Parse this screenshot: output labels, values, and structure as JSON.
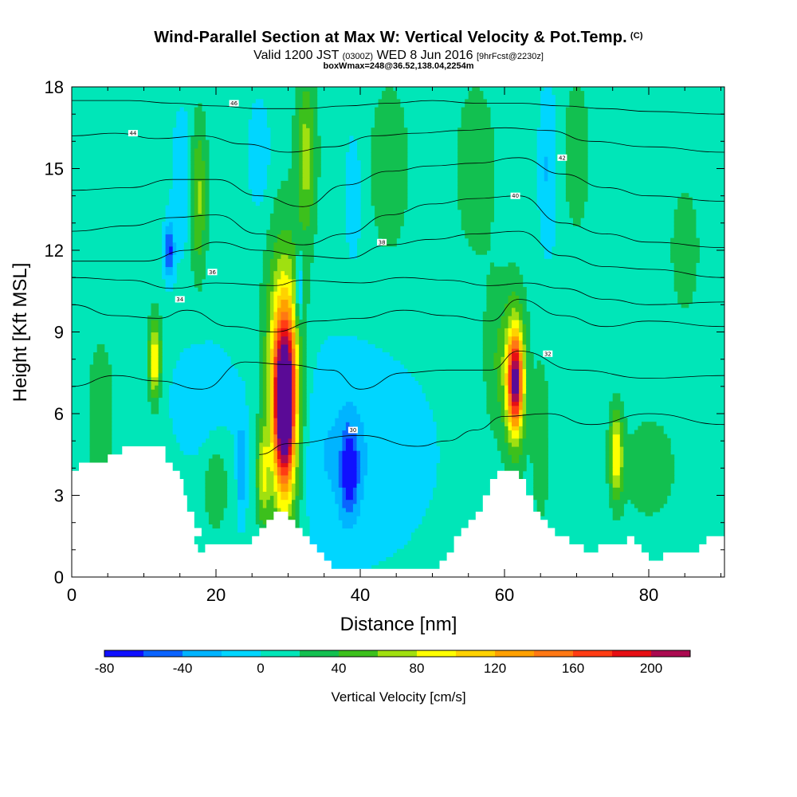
{
  "header": {
    "title": "Wind-Parallel Section at Max W: Vertical Velocity & Pot.Temp.",
    "copyright": "(C)",
    "valid_prefix": "Valid 1200 JST",
    "valid_utc": "(0300Z)",
    "valid_date": "WED 8 Jun 2016",
    "forecast": "[9hrFcst@2230z]",
    "box_info": "boxWmax=248@36.52,138.04,2254m"
  },
  "chart_data": {
    "type": "heatmap",
    "xlabel": "Distance [nm]",
    "ylabel": "Height [Kft MSL]",
    "xlim": [
      0,
      90.5
    ],
    "ylim": [
      0,
      18
    ],
    "x_ticks": [
      "0",
      "20",
      "40",
      "60",
      "80"
    ],
    "y_ticks": [
      "0",
      "3",
      "6",
      "9",
      "12",
      "15",
      "18"
    ],
    "colorbar": {
      "title": "Vertical Velocity [cm/s]",
      "tick_labels": [
        "-80",
        "-40",
        "0",
        "40",
        "80",
        "120",
        "160",
        "200"
      ],
      "levels": [
        -80,
        -60,
        -40,
        -20,
        0,
        20,
        40,
        60,
        80,
        100,
        120,
        140,
        160,
        180,
        200,
        220
      ],
      "colors": [
        "#1010ff",
        "#0a64ff",
        "#00b4ff",
        "#00d6ff",
        "#00e6b8",
        "#12c050",
        "#3cc01c",
        "#a0e010",
        "#ffff00",
        "#ffd200",
        "#ffa000",
        "#ff7814",
        "#ff3c14",
        "#e60f14",
        "#aa0a50",
        "#5a0a96"
      ],
      "background_color": "#00e6b8"
    },
    "terrain": [
      [
        0,
        3.9
      ],
      [
        1,
        3.9
      ],
      [
        1,
        4.2
      ],
      [
        3,
        4.2
      ],
      [
        3,
        4.2
      ],
      [
        5,
        4.2
      ],
      [
        5,
        4.5
      ],
      [
        7,
        4.5
      ],
      [
        7,
        4.8
      ],
      [
        13,
        4.8
      ],
      [
        13,
        4.2
      ],
      [
        14,
        4.2
      ],
      [
        14,
        3.9
      ],
      [
        15,
        3.9
      ],
      [
        15,
        3.6
      ],
      [
        15.5,
        3.6
      ],
      [
        15.5,
        3.0
      ],
      [
        16,
        3.0
      ],
      [
        16,
        2.4
      ],
      [
        17,
        2.4
      ],
      [
        17,
        1.8
      ],
      [
        18,
        1.8
      ],
      [
        18,
        1.5
      ],
      [
        17,
        1.5
      ],
      [
        17,
        1.2
      ],
      [
        17.5,
        1.2
      ],
      [
        17.5,
        0.9
      ],
      [
        18.5,
        0.9
      ],
      [
        18.5,
        1.2
      ],
      [
        25,
        1.2
      ],
      [
        25,
        1.5
      ],
      [
        26,
        1.5
      ],
      [
        26,
        1.8
      ],
      [
        27,
        1.8
      ],
      [
        27,
        2.1
      ],
      [
        28,
        2.1
      ],
      [
        28,
        2.4
      ],
      [
        30,
        2.4
      ],
      [
        30,
        2.1
      ],
      [
        31,
        2.1
      ],
      [
        31,
        1.8
      ],
      [
        32,
        1.8
      ],
      [
        32,
        1.5
      ],
      [
        33,
        1.5
      ],
      [
        33,
        1.2
      ],
      [
        34,
        1.2
      ],
      [
        34,
        0.9
      ],
      [
        35,
        0.9
      ],
      [
        35,
        0.6
      ],
      [
        36,
        0.6
      ],
      [
        36,
        0.3
      ],
      [
        51,
        0.3
      ],
      [
        51,
        0.6
      ],
      [
        52,
        0.6
      ],
      [
        52,
        0.9
      ],
      [
        53,
        0.9
      ],
      [
        53,
        1.5
      ],
      [
        54,
        1.5
      ],
      [
        54,
        1.8
      ],
      [
        55,
        1.8
      ],
      [
        55,
        2.1
      ],
      [
        56,
        2.1
      ],
      [
        56,
        2.4
      ],
      [
        57,
        2.4
      ],
      [
        57,
        3.0
      ],
      [
        58,
        3.0
      ],
      [
        58,
        3.6
      ],
      [
        59,
        3.6
      ],
      [
        59,
        3.9
      ],
      [
        62,
        3.9
      ],
      [
        62,
        3.6
      ],
      [
        63,
        3.6
      ],
      [
        63,
        3.0
      ],
      [
        64,
        3.0
      ],
      [
        64,
        2.4
      ],
      [
        65,
        2.4
      ],
      [
        65,
        2.1
      ],
      [
        66,
        2.1
      ],
      [
        66,
        1.8
      ],
      [
        67,
        1.8
      ],
      [
        67,
        1.5
      ],
      [
        69,
        1.5
      ],
      [
        69,
        1.2
      ],
      [
        71,
        1.2
      ],
      [
        71,
        0.9
      ],
      [
        73,
        0.9
      ],
      [
        73,
        1.2
      ],
      [
        77,
        1.2
      ],
      [
        77,
        1.5
      ],
      [
        78,
        1.5
      ],
      [
        78,
        1.2
      ],
      [
        79,
        1.2
      ],
      [
        79,
        0.9
      ],
      [
        80,
        0.9
      ],
      [
        80,
        0.6
      ],
      [
        82,
        0.6
      ],
      [
        82,
        0.9
      ],
      [
        87,
        0.9
      ],
      [
        87,
        1.2
      ],
      [
        88,
        1.2
      ],
      [
        88,
        1.5
      ],
      [
        90.5,
        1.5
      ]
    ],
    "w_features": [
      {
        "x": 29.5,
        "y": 6.2,
        "wx": 1.3,
        "wy": 2.6,
        "w": 175
      },
      {
        "x": 29.5,
        "y": 7.2,
        "wx": 2.0,
        "wy": 4.0,
        "w": 110
      },
      {
        "x": 29.3,
        "y": 6.0,
        "wx": 2.8,
        "wy": 6.0,
        "w": 60
      },
      {
        "x": 61.5,
        "y": 7.2,
        "wx": 1.0,
        "wy": 1.6,
        "w": 140
      },
      {
        "x": 61.5,
        "y": 7.3,
        "wx": 1.5,
        "wy": 2.8,
        "w": 90
      },
      {
        "x": 75.5,
        "y": 4.5,
        "wx": 0.9,
        "wy": 1.6,
        "w": 90
      },
      {
        "x": 11.5,
        "y": 8.0,
        "wx": 0.8,
        "wy": 1.5,
        "w": 95
      },
      {
        "x": 26.5,
        "y": 3.8,
        "wx": 0.9,
        "wy": 1.8,
        "w": 70
      },
      {
        "x": 17.5,
        "y": 14.0,
        "wx": 1.2,
        "wy": 2.8,
        "w": 60
      },
      {
        "x": 32.5,
        "y": 15.5,
        "wx": 1.4,
        "wy": 3.0,
        "w": 60
      },
      {
        "x": 38.5,
        "y": 3.9,
        "wx": 1.2,
        "wy": 1.6,
        "w": -70
      },
      {
        "x": 37.0,
        "y": 4.5,
        "wx": 12.0,
        "wy": 3.8,
        "w": -30
      },
      {
        "x": 18.0,
        "y": 6.5,
        "wx": 4.0,
        "wy": 2.0,
        "w": -25
      },
      {
        "x": 13.5,
        "y": 12.0,
        "wx": 0.7,
        "wy": 1.0,
        "w": -75
      },
      {
        "x": 31.5,
        "y": 10.5,
        "wx": 0.5,
        "wy": 1.5,
        "w": -60
      },
      {
        "x": 23.5,
        "y": 4.0,
        "wx": 0.5,
        "wy": 1.6,
        "w": -50
      },
      {
        "x": 15.5,
        "y": 14.5,
        "wx": 1.5,
        "wy": 2.5,
        "w": -30
      },
      {
        "x": 66.0,
        "y": 15.0,
        "wx": 1.2,
        "wy": 3.0,
        "w": -30
      },
      {
        "x": 26.0,
        "y": 15.5,
        "wx": 1.5,
        "wy": 2.0,
        "w": -25
      },
      {
        "x": 39.0,
        "y": 14.0,
        "wx": 1.0,
        "wy": 2.0,
        "w": -30
      },
      {
        "x": 65.0,
        "y": 5.0,
        "wx": 1.2,
        "wy": 3.0,
        "w": 30
      },
      {
        "x": 59.0,
        "y": 8.0,
        "wx": 2.0,
        "wy": 3.0,
        "w": 30
      },
      {
        "x": 80.0,
        "y": 4.0,
        "wx": 4.0,
        "wy": 2.0,
        "w": 25
      },
      {
        "x": 4.0,
        "y": 6.0,
        "wx": 2.0,
        "wy": 3.0,
        "w": 25
      },
      {
        "x": 20.0,
        "y": 3.5,
        "wx": 2.0,
        "wy": 2.0,
        "w": 30
      },
      {
        "x": 44.0,
        "y": 15.0,
        "wx": 3.0,
        "wy": 3.5,
        "w": 25
      },
      {
        "x": 56.0,
        "y": 15.0,
        "wx": 3.0,
        "wy": 3.5,
        "w": 25
      },
      {
        "x": 70.0,
        "y": 15.5,
        "wx": 2.0,
        "wy": 3.0,
        "w": 25
      },
      {
        "x": 85.0,
        "y": 12.0,
        "wx": 2.5,
        "wy": 3.0,
        "w": 20
      }
    ],
    "theta_contours": [
      {
        "label": "30",
        "points": [
          [
            26,
            4.5
          ],
          [
            30,
            4.9
          ],
          [
            40,
            5.2
          ],
          [
            48,
            4.8
          ],
          [
            52,
            5.0
          ],
          [
            56,
            5.4
          ],
          [
            60,
            5.9
          ],
          [
            66,
            6.0
          ],
          [
            72,
            5.6
          ],
          [
            80,
            6.0
          ],
          [
            90.5,
            5.6
          ]
        ],
        "label_at": [
          39,
          5.4
        ]
      },
      {
        "label": "32",
        "points": [
          [
            0,
            7.0
          ],
          [
            6,
            7.4
          ],
          [
            12,
            7.2
          ],
          [
            18,
            6.9
          ],
          [
            24,
            7.9
          ],
          [
            30,
            7.8
          ],
          [
            36,
            7.6
          ],
          [
            40,
            6.9
          ],
          [
            46,
            7.5
          ],
          [
            52,
            7.6
          ],
          [
            58,
            7.6
          ],
          [
            62,
            8.3
          ],
          [
            70,
            7.6
          ],
          [
            80,
            7.3
          ],
          [
            90.5,
            7.4
          ]
        ],
        "label_at": [
          66,
          8.2
        ]
      },
      {
        "label": "34",
        "points": [
          [
            0,
            10.0
          ],
          [
            6,
            9.6
          ],
          [
            12,
            9.5
          ],
          [
            16,
            9.8
          ],
          [
            22,
            9.2
          ],
          [
            28,
            9.0
          ],
          [
            34,
            9.4
          ],
          [
            40,
            9.5
          ],
          [
            46,
            9.8
          ],
          [
            52,
            9.6
          ],
          [
            58,
            9.4
          ],
          [
            62,
            10.2
          ],
          [
            68,
            9.6
          ],
          [
            74,
            9.2
          ],
          [
            80,
            9.4
          ],
          [
            90.5,
            9.2
          ]
        ],
        "label_at": [
          15,
          10.2
        ]
      },
      {
        "label": "36",
        "points": [
          [
            0,
            11.0
          ],
          [
            8,
            10.9
          ],
          [
            14,
            10.6
          ],
          [
            20,
            10.8
          ],
          [
            28,
            10.7
          ],
          [
            32,
            10.9
          ],
          [
            40,
            10.8
          ],
          [
            46,
            11.0
          ],
          [
            52,
            10.9
          ],
          [
            58,
            10.7
          ],
          [
            63,
            10.8
          ],
          [
            68,
            10.6
          ],
          [
            74,
            10.2
          ],
          [
            80,
            10.0
          ],
          [
            90.5,
            10.1
          ]
        ],
        "label_at": [
          19.5,
          11.2
        ]
      },
      {
        "label": "38",
        "points": [
          [
            0,
            11.6
          ],
          [
            10,
            11.6
          ],
          [
            16,
            12.0
          ],
          [
            20,
            12.3
          ],
          [
            26,
            12.0
          ],
          [
            32,
            11.8
          ],
          [
            38,
            11.7
          ],
          [
            44,
            12.2
          ],
          [
            50,
            12.4
          ],
          [
            56,
            12.6
          ],
          [
            62,
            12.7
          ],
          [
            68,
            11.8
          ],
          [
            74,
            11.4
          ],
          [
            80,
            11.3
          ],
          [
            90.5,
            11.0
          ]
        ],
        "label_at": [
          43,
          12.3
        ]
      },
      {
        "label": "40",
        "points": [
          [
            0,
            12.7
          ],
          [
            8,
            12.9
          ],
          [
            14,
            13.2
          ],
          [
            20,
            13.3
          ],
          [
            26,
            12.6
          ],
          [
            32,
            12.2
          ],
          [
            38,
            12.6
          ],
          [
            44,
            13.3
          ],
          [
            50,
            13.7
          ],
          [
            56,
            13.9
          ],
          [
            62,
            14.0
          ],
          [
            68,
            13.0
          ],
          [
            74,
            12.6
          ],
          [
            80,
            12.3
          ],
          [
            90.5,
            12.1
          ]
        ],
        "label_at": [
          61.5,
          14.0
        ]
      },
      {
        "label": "42",
        "points": [
          [
            0,
            14.2
          ],
          [
            8,
            14.3
          ],
          [
            14,
            14.6
          ],
          [
            20,
            14.6
          ],
          [
            26,
            14.0
          ],
          [
            32,
            13.6
          ],
          [
            38,
            14.4
          ],
          [
            44,
            14.9
          ],
          [
            50,
            15.1
          ],
          [
            56,
            15.2
          ],
          [
            62,
            15.4
          ],
          [
            68,
            14.8
          ],
          [
            74,
            14.3
          ],
          [
            80,
            14.0
          ],
          [
            90.5,
            13.8
          ]
        ],
        "label_at": [
          68,
          15.4
        ]
      },
      {
        "label": "44",
        "points": [
          [
            0,
            16.2
          ],
          [
            6,
            16.3
          ],
          [
            12,
            16.1
          ],
          [
            18,
            16.2
          ],
          [
            24,
            15.9
          ],
          [
            30,
            15.6
          ],
          [
            36,
            15.8
          ],
          [
            42,
            16.2
          ],
          [
            48,
            16.3
          ],
          [
            54,
            16.4
          ],
          [
            60,
            16.5
          ],
          [
            66,
            16.4
          ],
          [
            72,
            16.0
          ],
          [
            80,
            15.8
          ],
          [
            90.5,
            15.6
          ]
        ],
        "label_at": [
          8.5,
          16.3
        ]
      },
      {
        "label": "46",
        "points": [
          [
            0,
            17.5
          ],
          [
            8,
            17.5
          ],
          [
            14,
            17.4
          ],
          [
            20,
            17.3
          ],
          [
            26,
            17.2
          ],
          [
            32,
            17.2
          ],
          [
            38,
            17.3
          ],
          [
            44,
            17.4
          ],
          [
            50,
            17.5
          ],
          [
            56,
            17.4
          ],
          [
            62,
            17.4
          ],
          [
            68,
            17.3
          ],
          [
            74,
            17.2
          ],
          [
            80,
            17.1
          ],
          [
            90.5,
            17.0
          ]
        ],
        "label_at": [
          22.5,
          17.4
        ]
      }
    ]
  }
}
